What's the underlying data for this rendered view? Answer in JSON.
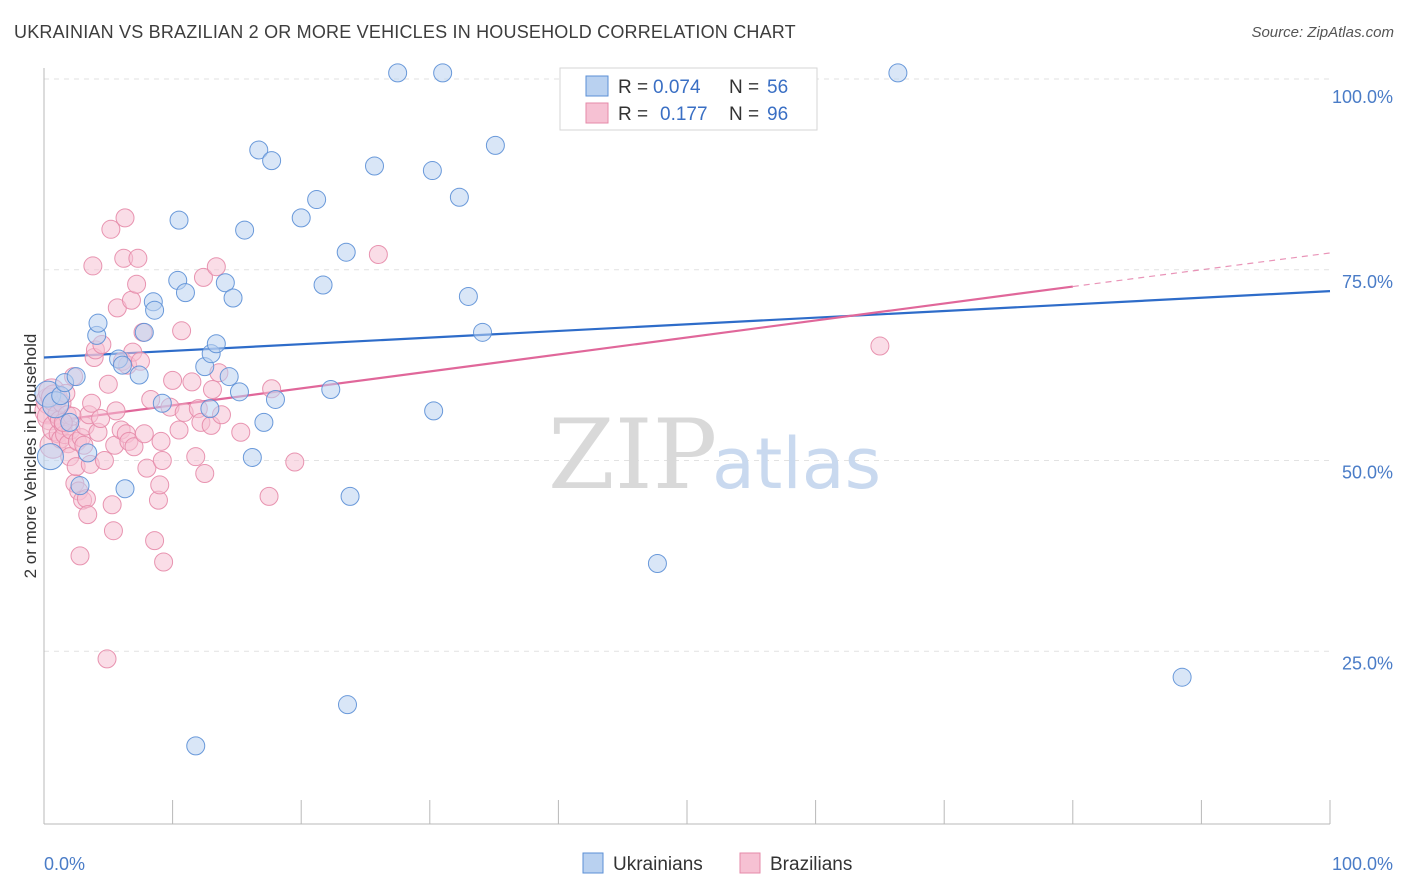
{
  "title": "UKRAINIAN VS BRAZILIAN 2 OR MORE VEHICLES IN HOUSEHOLD CORRELATION CHART",
  "source": "Source: ZipAtlas.com",
  "colors": {
    "ukrainians": "#5b8fd6",
    "ukrainians_fill": "#b9d1f0",
    "ukrainians_line": "#2e6cc9",
    "brazilians": "#e58aa8",
    "brazilians_fill": "#f6c1d3",
    "brazilians_line": "#e0679a",
    "grid": "#e2e2e2",
    "tick": "#4a7cc7"
  },
  "legend": {
    "rows": [
      {
        "r_label": "R =",
        "r_value": "0.074",
        "n_label": "N =",
        "n_value": "56"
      },
      {
        "r_label": "R =",
        "r_value": "0.177",
        "n_label": "N =",
        "n_value": "96"
      }
    ]
  },
  "watermark": {
    "zip": "ZIP",
    "atlas": "atlas"
  },
  "chart_data": {
    "type": "scatter",
    "title": "UKRAINIAN VS BRAZILIAN 2 OR MORE VEHICLES IN HOUSEHOLD CORRELATION CHART",
    "xlabel": "",
    "ylabel": "2 or more Vehicles in Household",
    "xlim": [
      0,
      100
    ],
    "ylim": [
      0,
      105
    ],
    "x_tick_labels": [
      "0.0%",
      "100.0%"
    ],
    "y_ticks": [
      25,
      50,
      75,
      100
    ],
    "y_tick_labels": [
      "25.0%",
      "50.0%",
      "75.0%",
      "100.0%"
    ],
    "grid": true,
    "legend_position": "top-center",
    "series": [
      {
        "name": "Ukrainians",
        "R": 0.074,
        "N": 56,
        "trend": {
          "x": [
            0,
            100
          ],
          "y": [
            63.5,
            72.2
          ]
        },
        "points": [
          [
            0.3,
            58.7
          ],
          [
            0.5,
            50.5
          ],
          [
            0.9,
            57.3
          ],
          [
            1.3,
            58.5
          ],
          [
            1.6,
            60.2
          ],
          [
            2.0,
            55.0
          ],
          [
            2.5,
            61.0
          ],
          [
            2.8,
            46.7
          ],
          [
            3.4,
            51.0
          ],
          [
            4.1,
            66.4
          ],
          [
            4.2,
            68.0
          ],
          [
            5.8,
            63.3
          ],
          [
            6.1,
            62.5
          ],
          [
            6.3,
            46.3
          ],
          [
            7.4,
            61.2
          ],
          [
            7.8,
            66.8
          ],
          [
            8.5,
            70.8
          ],
          [
            8.6,
            69.7
          ],
          [
            9.2,
            57.5
          ],
          [
            10.4,
            73.6
          ],
          [
            10.5,
            81.5
          ],
          [
            11.0,
            72.0
          ],
          [
            11.8,
            12.6
          ],
          [
            12.5,
            62.3
          ],
          [
            12.9,
            56.8
          ],
          [
            13.0,
            64.0
          ],
          [
            13.4,
            65.3
          ],
          [
            14.1,
            73.3
          ],
          [
            14.4,
            61.0
          ],
          [
            14.7,
            71.3
          ],
          [
            15.2,
            59.0
          ],
          [
            15.6,
            80.2
          ],
          [
            16.2,
            50.4
          ],
          [
            16.7,
            90.7
          ],
          [
            17.1,
            55.0
          ],
          [
            17.7,
            89.3
          ],
          [
            18.0,
            58.0
          ],
          [
            20.0,
            81.8
          ],
          [
            21.2,
            84.2
          ],
          [
            21.7,
            73.0
          ],
          [
            22.3,
            59.3
          ],
          [
            23.5,
            77.3
          ],
          [
            23.6,
            18.0
          ],
          [
            23.8,
            45.3
          ],
          [
            25.7,
            88.6
          ],
          [
            27.5,
            100.8
          ],
          [
            30.2,
            88.0
          ],
          [
            30.3,
            56.5
          ],
          [
            31.0,
            100.8
          ],
          [
            32.3,
            84.5
          ],
          [
            33.0,
            71.5
          ],
          [
            34.1,
            66.8
          ],
          [
            35.1,
            91.3
          ],
          [
            47.7,
            36.5
          ],
          [
            66.4,
            100.8
          ],
          [
            88.5,
            21.6
          ]
        ]
      },
      {
        "name": "Brazilians",
        "R": 0.177,
        "N": 96,
        "trend": {
          "x": [
            0,
            80
          ],
          "y": [
            55.0,
            72.8
          ]
        },
        "trend_dashed": {
          "x": [
            80,
            100
          ],
          "y": [
            72.8,
            77.2
          ]
        },
        "points": [
          [
            0.3,
            56.5
          ],
          [
            0.4,
            57.8
          ],
          [
            0.5,
            55.7
          ],
          [
            0.6,
            59.0
          ],
          [
            0.7,
            52.0
          ],
          [
            0.8,
            58.2
          ],
          [
            0.9,
            54.3
          ],
          [
            1.0,
            56.0
          ],
          [
            1.1,
            53.5
          ],
          [
            1.2,
            55.3
          ],
          [
            1.3,
            52.8
          ],
          [
            1.4,
            57.5
          ],
          [
            1.5,
            54.6
          ],
          [
            1.6,
            53.4
          ],
          [
            1.7,
            58.8
          ],
          [
            1.8,
            56.0
          ],
          [
            1.9,
            52.2
          ],
          [
            2.0,
            50.5
          ],
          [
            2.1,
            54.0
          ],
          [
            2.2,
            55.8
          ],
          [
            2.3,
            61.0
          ],
          [
            2.4,
            47.0
          ],
          [
            2.5,
            49.2
          ],
          [
            2.6,
            52.5
          ],
          [
            2.7,
            46.0
          ],
          [
            2.8,
            37.5
          ],
          [
            2.9,
            53.0
          ],
          [
            3.0,
            44.8
          ],
          [
            3.1,
            52.0
          ],
          [
            3.2,
            54.5
          ],
          [
            3.3,
            45.0
          ],
          [
            3.4,
            42.9
          ],
          [
            3.5,
            56.0
          ],
          [
            3.6,
            49.5
          ],
          [
            3.7,
            57.5
          ],
          [
            3.8,
            75.5
          ],
          [
            3.9,
            63.5
          ],
          [
            4.0,
            64.5
          ],
          [
            4.2,
            53.7
          ],
          [
            4.4,
            55.5
          ],
          [
            4.5,
            65.2
          ],
          [
            4.7,
            50.0
          ],
          [
            4.9,
            24.0
          ],
          [
            5.0,
            60.0
          ],
          [
            5.2,
            80.3
          ],
          [
            5.3,
            44.2
          ],
          [
            5.4,
            40.8
          ],
          [
            5.5,
            52.0
          ],
          [
            5.6,
            56.5
          ],
          [
            5.7,
            70.0
          ],
          [
            6.0,
            54.0
          ],
          [
            6.1,
            63.0
          ],
          [
            6.2,
            76.5
          ],
          [
            6.3,
            81.8
          ],
          [
            6.4,
            53.5
          ],
          [
            6.5,
            62.5
          ],
          [
            6.6,
            52.5
          ],
          [
            6.8,
            71.0
          ],
          [
            6.9,
            64.2
          ],
          [
            7.0,
            51.8
          ],
          [
            7.2,
            73.1
          ],
          [
            7.3,
            76.5
          ],
          [
            7.5,
            63.0
          ],
          [
            7.7,
            66.8
          ],
          [
            7.8,
            53.5
          ],
          [
            8.0,
            49.0
          ],
          [
            8.3,
            58.0
          ],
          [
            8.6,
            39.5
          ],
          [
            8.9,
            44.8
          ],
          [
            9.0,
            46.8
          ],
          [
            9.1,
            52.5
          ],
          [
            9.2,
            50.0
          ],
          [
            9.3,
            36.7
          ],
          [
            9.8,
            57.0
          ],
          [
            10.0,
            60.5
          ],
          [
            10.5,
            54.0
          ],
          [
            10.7,
            67.0
          ],
          [
            10.9,
            56.3
          ],
          [
            11.5,
            60.3
          ],
          [
            11.8,
            50.5
          ],
          [
            12.0,
            56.8
          ],
          [
            12.2,
            55.0
          ],
          [
            12.4,
            74.0
          ],
          [
            12.5,
            48.3
          ],
          [
            13.0,
            54.6
          ],
          [
            13.1,
            59.3
          ],
          [
            13.4,
            75.4
          ],
          [
            13.6,
            61.5
          ],
          [
            13.8,
            56.0
          ],
          [
            15.3,
            53.7
          ],
          [
            17.5,
            45.3
          ],
          [
            17.7,
            59.4
          ],
          [
            19.5,
            49.8
          ],
          [
            26.0,
            77.0
          ],
          [
            65.0,
            65.0
          ],
          [
            1.5,
            55.0
          ]
        ]
      }
    ]
  },
  "bottom_legend": [
    {
      "label": "Ukrainians"
    },
    {
      "label": "Brazilians"
    }
  ]
}
